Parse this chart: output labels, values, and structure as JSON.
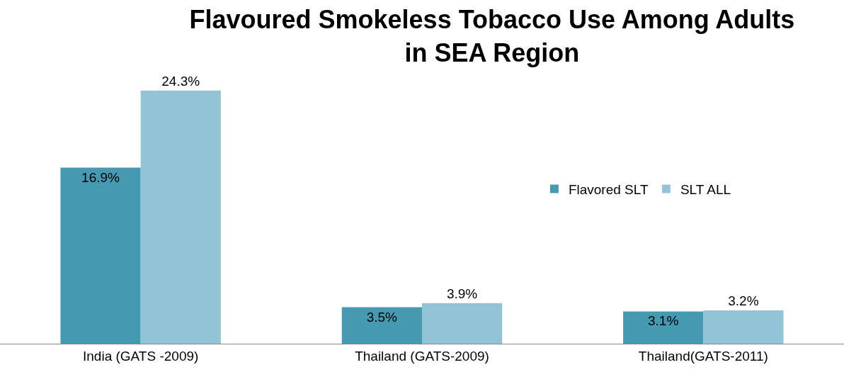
{
  "chart_data": {
    "type": "bar",
    "title": "Flavoured Smokeless Tobacco Use Among Adults\nin SEA Region",
    "categories": [
      "India (GATS -2009)",
      "Thailand (GATS-2009)",
      "Thailand(GATS-2011)"
    ],
    "series": [
      {
        "name": "Flavored SLT",
        "color": "#4599b0",
        "values": [
          16.9,
          3.5,
          3.1
        ],
        "value_labels": [
          "16.9%",
          "3.5%",
          "3.1%"
        ]
      },
      {
        "name": "SLT ALL",
        "color": "#93c4d5",
        "values": [
          24.3,
          3.9,
          3.2
        ],
        "value_labels": [
          "24.3%",
          "3.9%",
          "3.2%"
        ]
      }
    ],
    "ylim": [
      0,
      33
    ],
    "tick_labels": "x",
    "grid": false,
    "legend": "right"
  }
}
